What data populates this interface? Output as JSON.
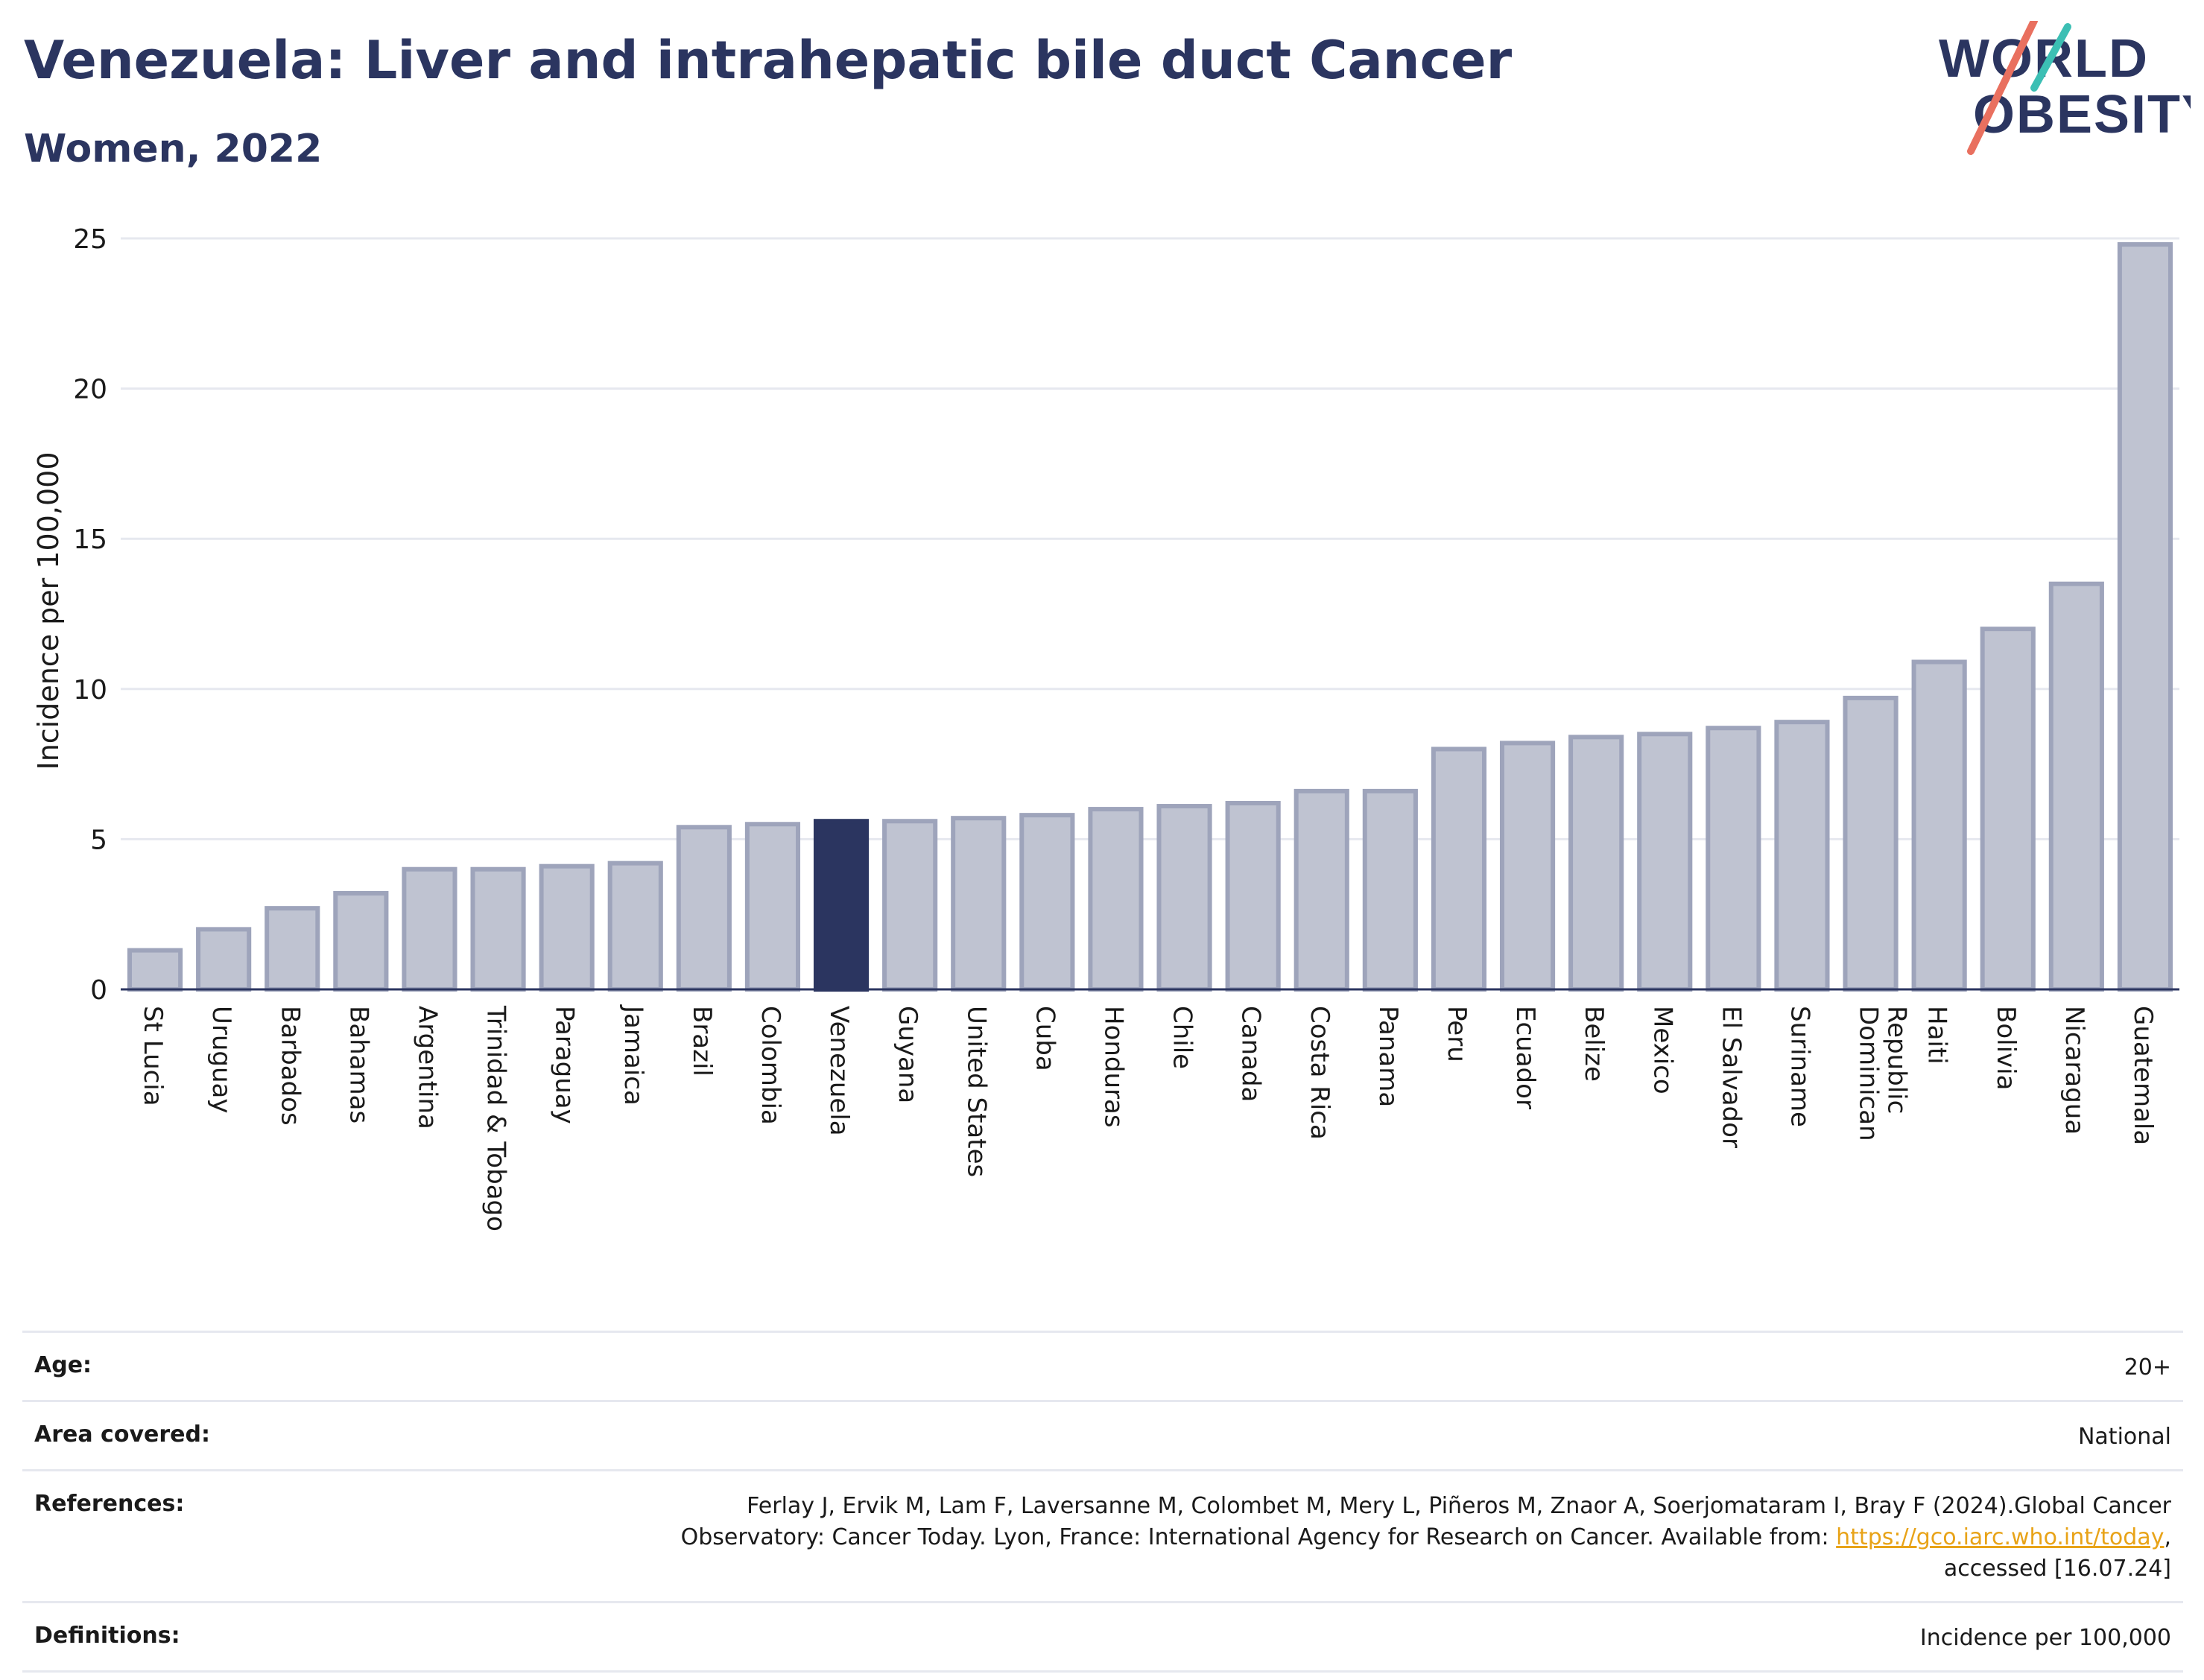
{
  "header": {
    "title": "Venezuela: Liver and intrahepatic bile duct Cancer",
    "subtitle": "Women, 2022"
  },
  "logo": {
    "line1": "WORLD",
    "line2": "OBESITY"
  },
  "colors": {
    "highlight": "#2b3560",
    "bar_fill": "#bfc3d1",
    "bar_stroke": "#9ea4bb",
    "grid": "#e6e8ef",
    "text": "#2b3560",
    "logo_teal": "#3cbfb4",
    "logo_coral": "#e9705f"
  },
  "chart_data": {
    "type": "bar",
    "ylabel": "Incidence per 100,000",
    "ylim": [
      0,
      25
    ],
    "yticks": [
      0,
      5,
      10,
      15,
      20,
      25
    ],
    "highlight": "Venezuela",
    "grid": true,
    "categories": [
      "St Lucia",
      "Uruguay",
      "Barbados",
      "Bahamas",
      "Argentina",
      "Trinidad & Tobago",
      "Paraguay",
      "Jamaica",
      "Brazil",
      "Colombia",
      "Venezuela",
      "Guyana",
      "United States",
      "Cuba",
      "Honduras",
      "Chile",
      "Canada",
      "Costa Rica",
      "Panama",
      "Peru",
      "Ecuador",
      "Belize",
      "Mexico",
      "El Salvador",
      "Suriname",
      "Dominican Republic",
      "Haiti",
      "Bolivia",
      "Nicaragua",
      "Guatemala"
    ],
    "values": [
      1.3,
      2.0,
      2.7,
      3.2,
      4.0,
      4.0,
      4.1,
      4.2,
      5.4,
      5.5,
      5.6,
      5.6,
      5.7,
      5.8,
      6.0,
      6.1,
      6.2,
      6.6,
      6.6,
      8.0,
      8.2,
      8.4,
      8.5,
      8.7,
      8.9,
      9.7,
      10.9,
      12.0,
      13.5,
      24.8
    ]
  },
  "info": {
    "age_label": "Age:",
    "age_value": "20+",
    "area_label": "Area covered:",
    "area_value": "National",
    "references_label": "References:",
    "references_line1": "Ferlay J, Ervik M, Lam F, Laversanne M, Colombet M, Mery L, Piñeros M, Znaor A, Soerjomataram I, Bray F (2024).Global Cancer",
    "references_line2_prefix": "Observatory: Cancer Today. Lyon, France: International Agency for Research on Cancer. Available from: ",
    "references_link": "https://gco.iarc.who.int/today",
    "references_line2_suffix": ",",
    "references_line3": "accessed [16.07.24]",
    "definitions_label": "Definitions:",
    "definitions_value": "Incidence per 100,000"
  }
}
